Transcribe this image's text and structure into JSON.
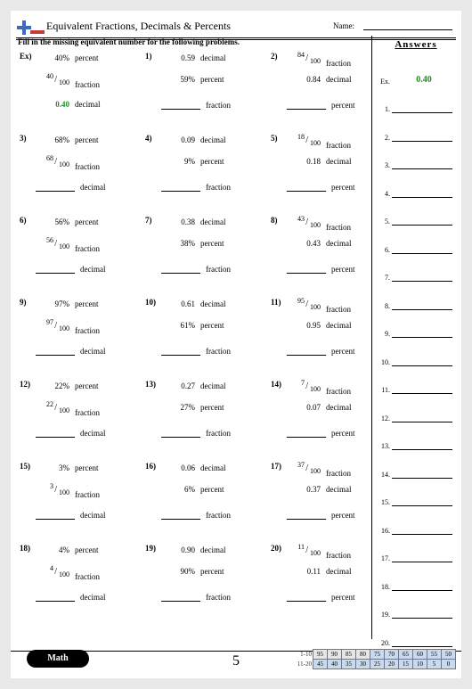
{
  "header": {
    "title": "Equivalent Fractions, Decimals & Percents",
    "name_label": "Name:",
    "instructions": "Fill in the missing equivalent number for the following problems.",
    "answers_title": "Answers"
  },
  "problems": [
    {
      "n": "Ex)",
      "rows": [
        {
          "t": "v",
          "v": "40%",
          "l": "percent"
        },
        {
          "t": "f",
          "num": "40",
          "den": "100",
          "l": "fraction"
        },
        {
          "t": "g",
          "v": "0.40",
          "l": "decimal"
        }
      ]
    },
    {
      "n": "1)",
      "rows": [
        {
          "t": "v",
          "v": "0.59",
          "l": "decimal"
        },
        {
          "t": "v",
          "v": "59%",
          "l": "percent"
        },
        {
          "t": "b",
          "l": "fraction"
        }
      ]
    },
    {
      "n": "2)",
      "rows": [
        {
          "t": "f",
          "num": "84",
          "den": "100",
          "l": "fraction"
        },
        {
          "t": "v",
          "v": "0.84",
          "l": "decimal"
        },
        {
          "t": "b",
          "l": "percent"
        }
      ]
    },
    {
      "n": "3)",
      "rows": [
        {
          "t": "v",
          "v": "68%",
          "l": "percent"
        },
        {
          "t": "f",
          "num": "68",
          "den": "100",
          "l": "fraction"
        },
        {
          "t": "b",
          "l": "decimal"
        }
      ]
    },
    {
      "n": "4)",
      "rows": [
        {
          "t": "v",
          "v": "0.09",
          "l": "decimal"
        },
        {
          "t": "v",
          "v": "9%",
          "l": "percent"
        },
        {
          "t": "b",
          "l": "fraction"
        }
      ]
    },
    {
      "n": "5)",
      "rows": [
        {
          "t": "f",
          "num": "18",
          "den": "100",
          "l": "fraction"
        },
        {
          "t": "v",
          "v": "0.18",
          "l": "decimal"
        },
        {
          "t": "b",
          "l": "percent"
        }
      ]
    },
    {
      "n": "6)",
      "rows": [
        {
          "t": "v",
          "v": "56%",
          "l": "percent"
        },
        {
          "t": "f",
          "num": "56",
          "den": "100",
          "l": "fraction"
        },
        {
          "t": "b",
          "l": "decimal"
        }
      ]
    },
    {
      "n": "7)",
      "rows": [
        {
          "t": "v",
          "v": "0.38",
          "l": "decimal"
        },
        {
          "t": "v",
          "v": "38%",
          "l": "percent"
        },
        {
          "t": "b",
          "l": "fraction"
        }
      ]
    },
    {
      "n": "8)",
      "rows": [
        {
          "t": "f",
          "num": "43",
          "den": "100",
          "l": "fraction"
        },
        {
          "t": "v",
          "v": "0.43",
          "l": "decimal"
        },
        {
          "t": "b",
          "l": "percent"
        }
      ]
    },
    {
      "n": "9)",
      "rows": [
        {
          "t": "v",
          "v": "97%",
          "l": "percent"
        },
        {
          "t": "f",
          "num": "97",
          "den": "100",
          "l": "fraction"
        },
        {
          "t": "b",
          "l": "decimal"
        }
      ]
    },
    {
      "n": "10)",
      "rows": [
        {
          "t": "v",
          "v": "0.61",
          "l": "decimal"
        },
        {
          "t": "v",
          "v": "61%",
          "l": "percent"
        },
        {
          "t": "b",
          "l": "fraction"
        }
      ]
    },
    {
      "n": "11)",
      "rows": [
        {
          "t": "f",
          "num": "95",
          "den": "100",
          "l": "fraction"
        },
        {
          "t": "v",
          "v": "0.95",
          "l": "decimal"
        },
        {
          "t": "b",
          "l": "percent"
        }
      ]
    },
    {
      "n": "12)",
      "rows": [
        {
          "t": "v",
          "v": "22%",
          "l": "percent"
        },
        {
          "t": "f",
          "num": "22",
          "den": "100",
          "l": "fraction"
        },
        {
          "t": "b",
          "l": "decimal"
        }
      ]
    },
    {
      "n": "13)",
      "rows": [
        {
          "t": "v",
          "v": "0.27",
          "l": "decimal"
        },
        {
          "t": "v",
          "v": "27%",
          "l": "percent"
        },
        {
          "t": "b",
          "l": "fraction"
        }
      ]
    },
    {
      "n": "14)",
      "rows": [
        {
          "t": "f",
          "num": "7",
          "den": "100",
          "l": "fraction"
        },
        {
          "t": "v",
          "v": "0.07",
          "l": "decimal"
        },
        {
          "t": "b",
          "l": "percent"
        }
      ]
    },
    {
      "n": "15)",
      "rows": [
        {
          "t": "v",
          "v": "3%",
          "l": "percent"
        },
        {
          "t": "f",
          "num": "3",
          "den": "100",
          "l": "fraction"
        },
        {
          "t": "b",
          "l": "decimal"
        }
      ]
    },
    {
      "n": "16)",
      "rows": [
        {
          "t": "v",
          "v": "0.06",
          "l": "decimal"
        },
        {
          "t": "v",
          "v": "6%",
          "l": "percent"
        },
        {
          "t": "b",
          "l": "fraction"
        }
      ]
    },
    {
      "n": "17)",
      "rows": [
        {
          "t": "f",
          "num": "37",
          "den": "100",
          "l": "fraction"
        },
        {
          "t": "v",
          "v": "0.37",
          "l": "decimal"
        },
        {
          "t": "b",
          "l": "percent"
        }
      ]
    },
    {
      "n": "18)",
      "rows": [
        {
          "t": "v",
          "v": "4%",
          "l": "percent"
        },
        {
          "t": "f",
          "num": "4",
          "den": "100",
          "l": "fraction"
        },
        {
          "t": "b",
          "l": "decimal"
        }
      ]
    },
    {
      "n": "19)",
      "rows": [
        {
          "t": "v",
          "v": "0.90",
          "l": "decimal"
        },
        {
          "t": "v",
          "v": "90%",
          "l": "percent"
        },
        {
          "t": "b",
          "l": "fraction"
        }
      ]
    },
    {
      "n": "20)",
      "rows": [
        {
          "t": "f",
          "num": "11",
          "den": "100",
          "l": "fraction"
        },
        {
          "t": "v",
          "v": "0.11",
          "l": "decimal"
        },
        {
          "t": "b",
          "l": "percent"
        }
      ]
    }
  ],
  "answers": [
    {
      "n": "Ex.",
      "v": "0.40"
    },
    {
      "n": "1."
    },
    {
      "n": "2."
    },
    {
      "n": "3."
    },
    {
      "n": "4."
    },
    {
      "n": "5."
    },
    {
      "n": "6."
    },
    {
      "n": "7."
    },
    {
      "n": "8."
    },
    {
      "n": "9."
    },
    {
      "n": "10."
    },
    {
      "n": "11."
    },
    {
      "n": "12."
    },
    {
      "n": "13."
    },
    {
      "n": "14."
    },
    {
      "n": "15."
    },
    {
      "n": "16."
    },
    {
      "n": "17."
    },
    {
      "n": "18."
    },
    {
      "n": "19."
    },
    {
      "n": "20."
    }
  ],
  "footer": {
    "badge": "Math",
    "page": "5",
    "score": {
      "row1_label": "1-10",
      "row2_label": "11-20",
      "row1": [
        "95",
        "90",
        "85",
        "80",
        "75",
        "70",
        "65",
        "60",
        "55",
        "50"
      ],
      "row2": [
        "45",
        "40",
        "35",
        "30",
        "25",
        "20",
        "15",
        "10",
        "5",
        "0"
      ]
    }
  },
  "colors": {
    "green": "#2a8a2a",
    "blue_cell": "#c9d9ef",
    "gray_cell": "#e6e6e6"
  }
}
